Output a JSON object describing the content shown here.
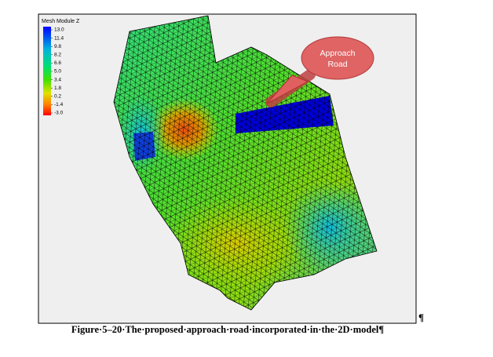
{
  "figure": {
    "legend": {
      "title": "Mesh Module Z",
      "labels": [
        "13.0",
        "11.4",
        "9.8",
        "8.2",
        "6.6",
        "5.0",
        "3.4",
        "1.8",
        "0.2",
        "-1.4",
        "-3.0"
      ]
    },
    "callout": [
      "Approach",
      "Road"
    ],
    "caption": "Figure·5–20·The·proposed·approach·road·incorporated·in·the·2D·model¶",
    "pilcrow": "¶"
  }
}
